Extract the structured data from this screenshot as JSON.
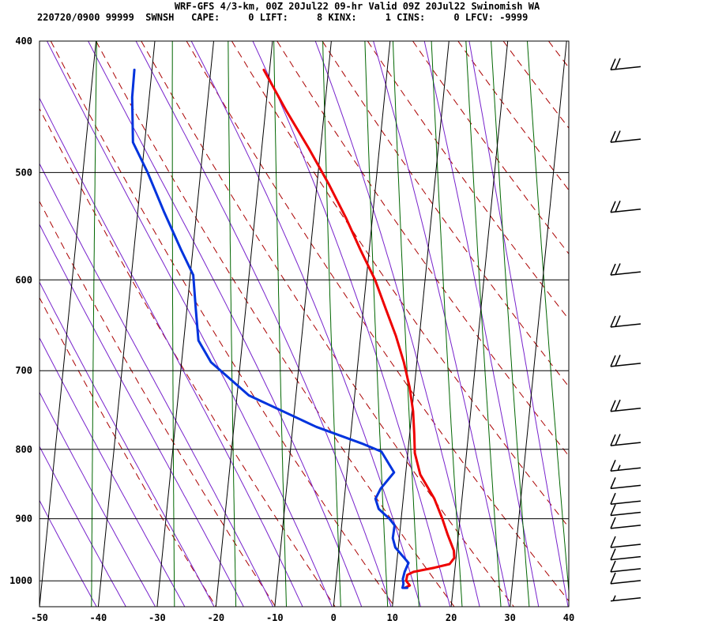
{
  "header": {
    "line1": "WRF-GFS 4/3-km, 00Z 20Jul22 09-hr Valid 09Z 20Jul22 Swinomish WA",
    "line2": "220720/0900 99999  SWNSH   CAPE:     0 LIFT:     8 KINX:     1 CINS:     0 LFCV: -9999"
  },
  "chart_data": {
    "type": "line",
    "title": "WRF-GFS 4/3-km, 00Z 20Jul22 09-hr Valid 09Z 20Jul22 Swinomish WA",
    "xlabel": "",
    "ylabel": "",
    "x_ticks": [
      "-50",
      "-40",
      "-30",
      "-20",
      "-10",
      "0",
      "10",
      "20",
      "30",
      "40"
    ],
    "y_ticks": [
      "400",
      "500",
      "600",
      "700",
      "800",
      "900",
      "1000"
    ],
    "xlim": [
      -50,
      40
    ],
    "ylim": [
      1045,
      400
    ],
    "log_scale_y": true,
    "skew": "temperature isotherms skewed",
    "grid": true,
    "series": [
      {
        "role": "temperature",
        "color": "#ee0000",
        "points": [
          [
            -21.0,
            420
          ],
          [
            -16.5,
            450
          ],
          [
            -12.0,
            480
          ],
          [
            -8.0,
            510
          ],
          [
            -4.5,
            540
          ],
          [
            -1.5,
            570
          ],
          [
            1.5,
            600
          ],
          [
            3.8,
            630
          ],
          [
            6.0,
            660
          ],
          [
            7.8,
            690
          ],
          [
            9.2,
            720
          ],
          [
            10.2,
            750
          ],
          [
            10.8,
            780
          ],
          [
            11.2,
            805
          ],
          [
            12.5,
            835
          ],
          [
            15.3,
            870
          ],
          [
            17.0,
            900
          ],
          [
            18.2,
            925
          ],
          [
            19.5,
            950
          ],
          [
            19.7,
            962
          ],
          [
            19.0,
            972
          ],
          [
            16.5,
            978
          ],
          [
            13.0,
            985
          ],
          [
            12.0,
            990
          ],
          [
            11.9,
            1000
          ],
          [
            12.6,
            1008
          ],
          [
            11.8,
            1012
          ]
        ]
      },
      {
        "role": "dewpoint",
        "color": "#0033dd",
        "points": [
          [
            -43.0,
            420
          ],
          [
            -42.9,
            440
          ],
          [
            -42.0,
            475
          ],
          [
            -39.0,
            500
          ],
          [
            -35.5,
            535
          ],
          [
            -32.0,
            570
          ],
          [
            -29.5,
            595
          ],
          [
            -28.5,
            630
          ],
          [
            -27.5,
            665
          ],
          [
            -25.0,
            690
          ],
          [
            -18.0,
            730
          ],
          [
            -6.0,
            770
          ],
          [
            2.0,
            792
          ],
          [
            5.5,
            803
          ],
          [
            8.0,
            832
          ],
          [
            6.0,
            855
          ],
          [
            5.3,
            870
          ],
          [
            6.0,
            885
          ],
          [
            8.0,
            900
          ],
          [
            9.0,
            910
          ],
          [
            8.9,
            930
          ],
          [
            9.5,
            945
          ],
          [
            11.0,
            960
          ],
          [
            12.0,
            970
          ],
          [
            11.5,
            985
          ],
          [
            11.3,
            997
          ],
          [
            11.5,
            1005
          ],
          [
            11.4,
            1012
          ],
          [
            12.2,
            1012
          ]
        ]
      }
    ],
    "wind_barbs": [
      {
        "pressure": 420,
        "speed_kt": 20
      },
      {
        "pressure": 475,
        "speed_kt": 20
      },
      {
        "pressure": 535,
        "speed_kt": 20
      },
      {
        "pressure": 595,
        "speed_kt": 20
      },
      {
        "pressure": 650,
        "speed_kt": 20
      },
      {
        "pressure": 695,
        "speed_kt": 20
      },
      {
        "pressure": 750,
        "speed_kt": 20
      },
      {
        "pressure": 795,
        "speed_kt": 20
      },
      {
        "pressure": 830,
        "speed_kt": 15
      },
      {
        "pressure": 855,
        "speed_kt": 10
      },
      {
        "pressure": 878,
        "speed_kt": 10
      },
      {
        "pressure": 895,
        "speed_kt": 10
      },
      {
        "pressure": 915,
        "speed_kt": 10
      },
      {
        "pressure": 945,
        "speed_kt": 10
      },
      {
        "pressure": 965,
        "speed_kt": 10
      },
      {
        "pressure": 985,
        "speed_kt": 10
      },
      {
        "pressure": 1005,
        "speed_kt": 10
      },
      {
        "pressure": 1035,
        "speed_kt": 5
      }
    ],
    "background": {
      "dry_adiabat_color": "#aa0000",
      "moist_adiabat_color": "#7722cc",
      "mixing_ratio_color": "#006600"
    }
  }
}
